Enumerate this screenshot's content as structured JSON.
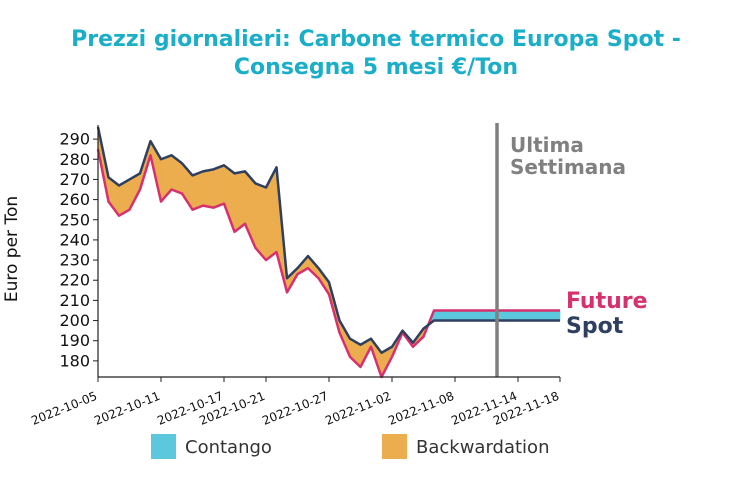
{
  "chart_data": {
    "type": "area",
    "title_line1": "Prezzi giornalieri: Carbone termico Europa Spot -",
    "title_line2": "Consegna 5 mesi €/Ton",
    "ylabel": "Euro per Ton",
    "xlabel": "",
    "ylim": [
      172,
      297
    ],
    "yticks": [
      180,
      190,
      200,
      210,
      220,
      230,
      240,
      250,
      260,
      270,
      280,
      290
    ],
    "xlim": [
      "2022-10-05",
      "2022-11-18"
    ],
    "xticks": [
      "2022-10-05",
      "2022-10-11",
      "2022-10-17",
      "2022-10-21",
      "2022-10-27",
      "2022-11-02",
      "2022-11-08",
      "2022-11-14",
      "2022-11-18"
    ],
    "annotation": {
      "date": "2022-11-12",
      "line1": "Ultima",
      "line2": "Settimana"
    },
    "series": [
      {
        "name": "Spot",
        "color": "#2e3f5f",
        "x": [
          "2022-10-05",
          "2022-10-06",
          "2022-10-07",
          "2022-10-08",
          "2022-10-09",
          "2022-10-10",
          "2022-10-11",
          "2022-10-12",
          "2022-10-13",
          "2022-10-14",
          "2022-10-15",
          "2022-10-16",
          "2022-10-17",
          "2022-10-18",
          "2022-10-19",
          "2022-10-20",
          "2022-10-21",
          "2022-10-22",
          "2022-10-23",
          "2022-10-24",
          "2022-10-25",
          "2022-10-26",
          "2022-10-27",
          "2022-10-28",
          "2022-10-29",
          "2022-10-30",
          "2022-10-31",
          "2022-11-01",
          "2022-11-02",
          "2022-11-03",
          "2022-11-04",
          "2022-11-05",
          "2022-11-06",
          "2022-11-07",
          "2022-11-08",
          "2022-11-09",
          "2022-11-10",
          "2022-11-11",
          "2022-11-12",
          "2022-11-13",
          "2022-11-14",
          "2022-11-15",
          "2022-11-16",
          "2022-11-17",
          "2022-11-18"
        ],
        "values": [
          296,
          271,
          267,
          270,
          273,
          289,
          280,
          282,
          278,
          272,
          274,
          275,
          277,
          273,
          274,
          268,
          266,
          276,
          221,
          226,
          232,
          226,
          219,
          200,
          191,
          188,
          191,
          184,
          187,
          195,
          189,
          196,
          200,
          200,
          200,
          200,
          200,
          200,
          200,
          200,
          200,
          200,
          200,
          200,
          200
        ]
      },
      {
        "name": "Future",
        "color": "#d6306f",
        "x": [
          "2022-10-05",
          "2022-10-06",
          "2022-10-07",
          "2022-10-08",
          "2022-10-09",
          "2022-10-10",
          "2022-10-11",
          "2022-10-12",
          "2022-10-13",
          "2022-10-14",
          "2022-10-15",
          "2022-10-16",
          "2022-10-17",
          "2022-10-18",
          "2022-10-19",
          "2022-10-20",
          "2022-10-21",
          "2022-10-22",
          "2022-10-23",
          "2022-10-24",
          "2022-10-25",
          "2022-10-26",
          "2022-10-27",
          "2022-10-28",
          "2022-10-29",
          "2022-10-30",
          "2022-10-31",
          "2022-11-01",
          "2022-11-02",
          "2022-11-03",
          "2022-11-04",
          "2022-11-05",
          "2022-11-06",
          "2022-11-07",
          "2022-11-08",
          "2022-11-09",
          "2022-11-10",
          "2022-11-11",
          "2022-11-12",
          "2022-11-13",
          "2022-11-14",
          "2022-11-15",
          "2022-11-16",
          "2022-11-17",
          "2022-11-18"
        ],
        "values": [
          285,
          259,
          252,
          255,
          265,
          282,
          259,
          265,
          263,
          255,
          257,
          256,
          258,
          244,
          248,
          236,
          230,
          234,
          214,
          223,
          226,
          221,
          213,
          194,
          182,
          177,
          187,
          172,
          182,
          194,
          187,
          192,
          205,
          205,
          205,
          205,
          205,
          205,
          205,
          205,
          205,
          205,
          205,
          205,
          205
        ]
      }
    ],
    "legend": [
      {
        "name": "Contango",
        "color": "#5bc8de"
      },
      {
        "name": "Backwardation",
        "color": "#ebad4d"
      }
    ],
    "legend_position": "bottom",
    "backwardation_color": "#ebad4d",
    "contango_color": "#5bc8de",
    "title_color": "#1aaec9",
    "annotation_color": "#808080",
    "grid": false
  }
}
